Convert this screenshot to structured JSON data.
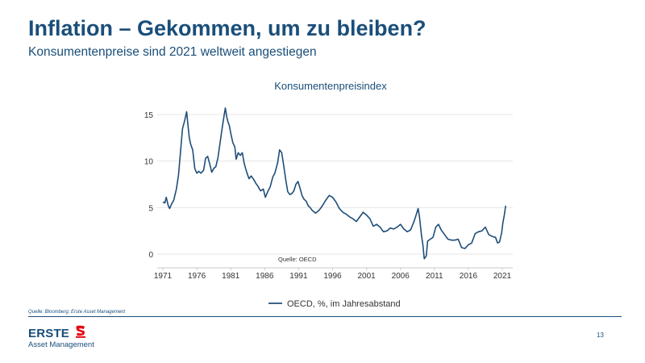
{
  "slide": {
    "title": "Inflation – Gekommen, um zu bleiben?",
    "subtitle": "Konsumentenpreise sind 2021 weltweit angestiegen",
    "source_note": "Quelle: Bloomberg; Erste Asset Management",
    "page_number": "13",
    "logo": {
      "word": "ERSTE",
      "subtitle": "Asset Management",
      "accent_color": "#e30613"
    }
  },
  "chart_data": {
    "type": "line",
    "title": "Konsumentenpreisindex",
    "annotation": "Quelle: OECD",
    "xlabel": "",
    "ylabel": "",
    "xlim": [
      1971,
      2021.6
    ],
    "ylim": [
      -1,
      16
    ],
    "x_ticks": [
      1971,
      1976,
      1981,
      1986,
      1991,
      1996,
      2001,
      2006,
      2011,
      2016,
      2021
    ],
    "y_ticks": [
      0,
      5,
      10,
      15
    ],
    "grid": "horizontal",
    "legend_position": "bottom",
    "series": [
      {
        "name": "OECD, %, im Jahresabstand",
        "color": "#1f4e79",
        "x": [
          1971.0,
          1971.3,
          1971.5,
          1971.8,
          1972.0,
          1972.3,
          1972.6,
          1973.0,
          1973.3,
          1973.6,
          1973.9,
          1974.2,
          1974.5,
          1974.7,
          1974.9,
          1975.1,
          1975.4,
          1975.7,
          1976.0,
          1976.3,
          1976.6,
          1977.0,
          1977.3,
          1977.6,
          1977.9,
          1978.2,
          1978.5,
          1978.8,
          1979.1,
          1979.4,
          1979.7,
          1980.0,
          1980.2,
          1980.4,
          1980.6,
          1980.8,
          1981.0,
          1981.3,
          1981.6,
          1981.8,
          1982.1,
          1982.4,
          1982.7,
          1983.0,
          1983.4,
          1983.7,
          1984.0,
          1984.4,
          1984.7,
          1985.0,
          1985.4,
          1985.8,
          1986.1,
          1986.5,
          1986.8,
          1987.2,
          1987.5,
          1987.9,
          1988.2,
          1988.5,
          1988.8,
          1989.1,
          1989.4,
          1989.7,
          1990.0,
          1990.3,
          1990.6,
          1990.9,
          1991.2,
          1991.5,
          1991.8,
          1992.1,
          1992.4,
          1992.7,
          1993.0,
          1993.5,
          1994.0,
          1994.5,
          1995.0,
          1995.5,
          1996.0,
          1996.5,
          1997.0,
          1997.5,
          1998.0,
          1998.5,
          1999.0,
          1999.5,
          2000.0,
          2000.5,
          2001.0,
          2001.5,
          2002.0,
          2002.5,
          2003.0,
          2003.5,
          2004.0,
          2004.5,
          2005.0,
          2005.5,
          2006.0,
          2006.5,
          2007.0,
          2007.5,
          2008.0,
          2008.3,
          2008.6,
          2008.8,
          2009.1,
          2009.3,
          2009.5,
          2009.8,
          2010.0,
          2010.4,
          2010.8,
          2011.2,
          2011.6,
          2012.0,
          2012.5,
          2013.0,
          2013.5,
          2014.0,
          2014.5,
          2015.0,
          2015.5,
          2016.0,
          2016.5,
          2017.0,
          2017.5,
          2018.0,
          2018.5,
          2019.0,
          2019.5,
          2020.0,
          2020.3,
          2020.6,
          2020.9,
          2021.1,
          2021.3,
          2021.5
        ],
        "values": [
          5.6,
          5.5,
          6.1,
          5.2,
          4.9,
          5.4,
          5.8,
          7.0,
          8.5,
          11.0,
          13.5,
          14.3,
          15.3,
          13.8,
          12.5,
          11.8,
          11.2,
          9.2,
          8.7,
          8.9,
          8.7,
          9.0,
          10.3,
          10.5,
          9.7,
          8.8,
          9.2,
          9.4,
          10.3,
          11.8,
          13.4,
          14.8,
          15.7,
          14.8,
          14.2,
          13.8,
          13.0,
          12.0,
          11.5,
          10.2,
          10.9,
          10.6,
          10.9,
          9.7,
          8.7,
          8.1,
          8.4,
          8.0,
          7.6,
          7.3,
          6.8,
          7.0,
          6.1,
          6.8,
          7.2,
          8.3,
          8.7,
          9.8,
          11.2,
          10.9,
          9.5,
          8.0,
          6.7,
          6.4,
          6.5,
          6.8,
          7.5,
          7.8,
          7.1,
          6.3,
          5.9,
          5.7,
          5.2,
          5.0,
          4.7,
          4.4,
          4.7,
          5.2,
          5.8,
          6.3,
          6.1,
          5.6,
          4.9,
          4.5,
          4.3,
          4.0,
          3.8,
          3.5,
          4.0,
          4.5,
          4.2,
          3.8,
          3.0,
          3.2,
          2.9,
          2.4,
          2.5,
          2.8,
          2.7,
          2.9,
          3.2,
          2.7,
          2.4,
          2.6,
          3.5,
          4.2,
          4.9,
          4.0,
          2.0,
          1.0,
          -0.5,
          -0.2,
          1.4,
          1.6,
          1.8,
          2.9,
          3.2,
          2.6,
          2.1,
          1.6,
          1.5,
          1.5,
          1.6,
          0.7,
          0.6,
          1.0,
          1.2,
          2.2,
          2.4,
          2.5,
          2.9,
          2.1,
          1.9,
          1.8,
          1.2,
          1.3,
          2.3,
          3.4,
          4.2,
          5.2
        ]
      }
    ]
  }
}
